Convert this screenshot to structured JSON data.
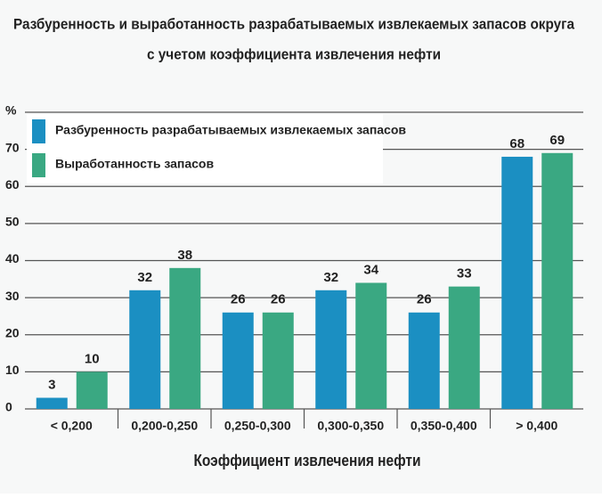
{
  "chart_data": {
    "type": "bar",
    "title": [
      "Разбуренность и выработанность разрабатываемых извлекаемых запасов округа",
      "с учетом коэффициента извлечения нефти"
    ],
    "x_label": "Коэффициент извлечения нефти",
    "categories": [
      "< 0,200",
      "0,200-0,250",
      "0,250-0,300",
      "0,300-0,350",
      "0,350-0,400",
      "> 0,400"
    ],
    "series": [
      {
        "name": "Разбуренность разрабатываемых извлекаемых запасов",
        "color": "#1b8fc2",
        "values": [
          3,
          32,
          26,
          32,
          26,
          68
        ]
      },
      {
        "name": "Выработанность запасов",
        "color": "#3aa882",
        "values": [
          10,
          38,
          26,
          34,
          33,
          69
        ]
      }
    ],
    "ylim": [
      0,
      80
    ],
    "yticks": [
      0,
      10,
      20,
      30,
      40,
      50,
      60,
      70,
      {
        "value": 80,
        "label": "%"
      }
    ],
    "grid": true,
    "legend": "upper-left"
  }
}
